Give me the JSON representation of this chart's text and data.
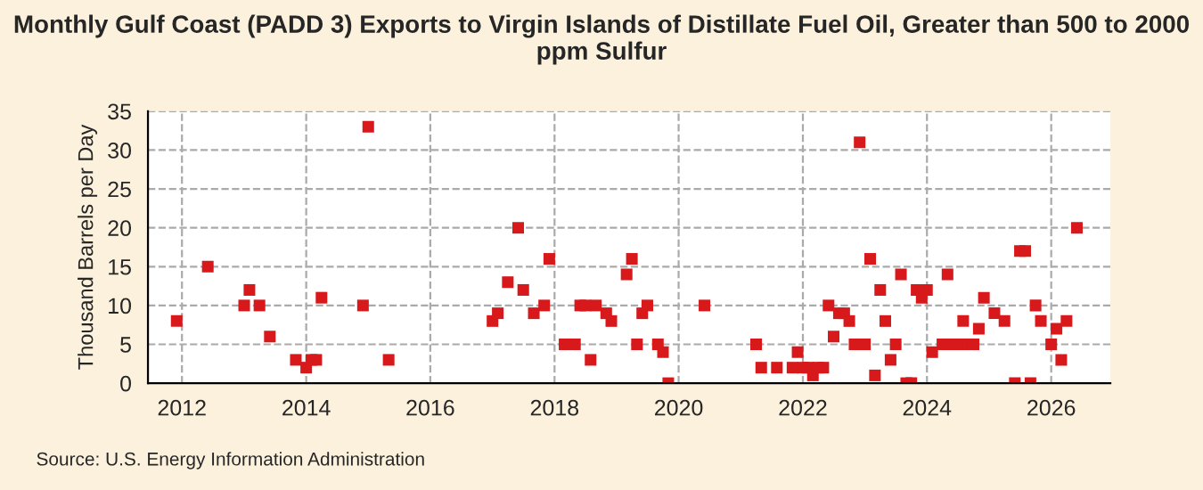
{
  "chart_data": {
    "type": "scatter",
    "title": "Monthly Gulf Coast (PADD 3) Exports to Virgin Islands of Distillate Fuel Oil, Greater than 500 to 2000 ppm Sulfur",
    "ylabel": "Thousand Barrels per Day",
    "annotations": [
      "Source: U.S. Energy Information Administration"
    ],
    "x": [
      "2011-12",
      "2012-06",
      "2013-01",
      "2013-02",
      "2013-04",
      "2013-06",
      "2013-11",
      "2014-01",
      "2014-02",
      "2014-03",
      "2014-04",
      "2014-12",
      "2015-01",
      "2015-05",
      "2017-01",
      "2017-02",
      "2017-04",
      "2017-06",
      "2017-07",
      "2017-09",
      "2017-11",
      "2017-12",
      "2018-03",
      "2018-05",
      "2018-06",
      "2018-07",
      "2018-08",
      "2018-09",
      "2018-11",
      "2018-12",
      "2019-03",
      "2019-04",
      "2019-05",
      "2019-06",
      "2019-07",
      "2019-09",
      "2019-10",
      "2019-11",
      "2020-06",
      "2021-04",
      "2021-05",
      "2021-08",
      "2021-11",
      "2021-12",
      "2022-01",
      "2022-02",
      "2022-03",
      "2022-04",
      "2022-05",
      "2022-06",
      "2022-07",
      "2022-08",
      "2022-09",
      "2022-10",
      "2022-11",
      "2022-12",
      "2023-01",
      "2023-02",
      "2023-03",
      "2023-04",
      "2023-05",
      "2023-06",
      "2023-07",
      "2023-08",
      "2023-09",
      "2023-10",
      "2023-11",
      "2023-12",
      "2024-01",
      "2024-02",
      "2024-04",
      "2024-05",
      "2024-06",
      "2024-07",
      "2024-08",
      "2024-09",
      "2024-10",
      "2024-11",
      "2024-12",
      "2025-02",
      "2025-04",
      "2025-06",
      "2025-07",
      "2025-08",
      "2025-09",
      "2025-10",
      "2025-11",
      "2026-01",
      "2026-02",
      "2026-03",
      "2026-04",
      "2026-06"
    ],
    "series": [
      {
        "color": "#d7191c",
        "values": [
          8,
          15,
          10,
          12,
          10,
          6,
          3,
          2,
          3,
          3,
          11,
          10,
          33,
          3,
          8,
          9,
          13,
          20,
          12,
          9,
          10,
          16,
          5,
          5,
          10,
          10,
          3,
          10,
          9,
          8,
          14,
          16,
          5,
          9,
          10,
          5,
          4,
          0,
          10,
          5,
          2,
          2,
          2,
          4,
          2,
          2,
          1,
          2,
          2,
          10,
          6,
          9,
          9,
          8,
          5,
          31,
          5,
          16,
          1,
          12,
          8,
          3,
          5,
          14,
          0,
          0,
          12,
          11,
          12,
          4,
          5,
          14,
          5,
          5,
          8,
          5,
          5,
          7,
          11,
          9,
          8,
          0,
          17,
          17,
          0,
          10,
          8,
          5,
          7,
          3,
          8,
          20
        ]
      }
    ],
    "xlim": [
      "2011-06-15",
      "2026-12-15"
    ],
    "xticks": [
      {
        "value": "2012-01-01",
        "label": "2012"
      },
      {
        "value": "2014-01-01",
        "label": "2014"
      },
      {
        "value": "2016-01-01",
        "label": "2016"
      },
      {
        "value": "2018-01-01",
        "label": "2018"
      },
      {
        "value": "2020-01-01",
        "label": "2020"
      },
      {
        "value": "2022-01-01",
        "label": "2022"
      },
      {
        "value": "2024-01-01",
        "label": "2024"
      },
      {
        "value": "2026-01-01",
        "label": "2026"
      }
    ],
    "ylim": [
      0,
      35
    ],
    "yticks": [
      0,
      5,
      10,
      15,
      20,
      25,
      30,
      35
    ],
    "grid": true,
    "marker": "square",
    "line_style": "dashed"
  }
}
